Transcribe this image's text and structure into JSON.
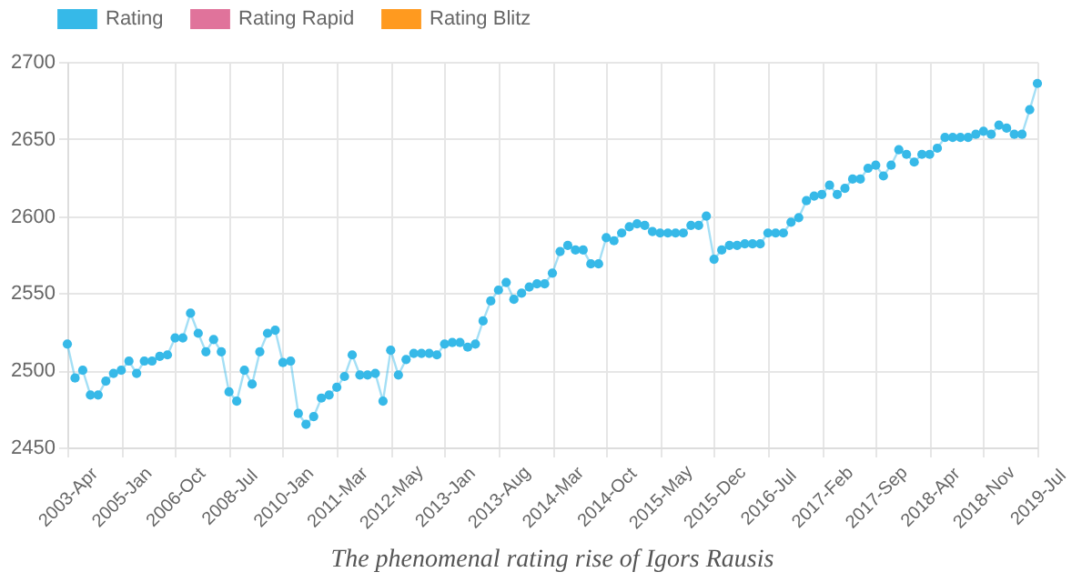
{
  "chart_data": {
    "type": "line",
    "categories": [
      "2003-Apr",
      null,
      null,
      null,
      null,
      null,
      null,
      "2005-Jan",
      null,
      null,
      null,
      null,
      null,
      null,
      "2006-Oct",
      null,
      null,
      null,
      null,
      null,
      null,
      "2008-Jul",
      null,
      null,
      null,
      null,
      null,
      null,
      "2010-Jan",
      null,
      null,
      null,
      null,
      null,
      null,
      "2011-Mar",
      null,
      null,
      null,
      null,
      null,
      null,
      "2012-May",
      null,
      null,
      null,
      null,
      null,
      null,
      "2013-Jan",
      null,
      null,
      null,
      null,
      null,
      null,
      "2013-Aug",
      null,
      null,
      null,
      null,
      null,
      null,
      "2014-Mar",
      null,
      null,
      null,
      null,
      null,
      null,
      "2014-Oct",
      null,
      null,
      null,
      null,
      null,
      null,
      "2015-May",
      null,
      null,
      null,
      null,
      null,
      null,
      "2015-Dec",
      null,
      null,
      null,
      null,
      null,
      null,
      "2016-Jul",
      null,
      null,
      null,
      null,
      null,
      null,
      "2017-Feb",
      null,
      null,
      null,
      null,
      null,
      null,
      "2017-Sep",
      null,
      null,
      null,
      null,
      null,
      null,
      "2018-Apr",
      null,
      null,
      null,
      null,
      null,
      null,
      "2018-Nov",
      null,
      null,
      null,
      null,
      null,
      null,
      "2019-Jul"
    ],
    "series": [
      {
        "name": "Rating",
        "color": "#36b9e8",
        "values": [
          2517,
          2495,
          2500,
          2484,
          2484,
          2493,
          2498,
          2500,
          2506,
          2498,
          2506,
          2506,
          2509,
          2510,
          2521,
          2521,
          2537,
          2524,
          2512,
          2520,
          2512,
          2486,
          2480,
          2500,
          2491,
          2512,
          2524,
          2526,
          2505,
          2506,
          2472,
          2465,
          2470,
          2482,
          2484,
          2489,
          2496,
          2510,
          2497,
          2497,
          2498,
          2480,
          2513,
          2497,
          2507,
          2511,
          2511,
          2511,
          2510,
          2517,
          2518,
          2518,
          2515,
          2517,
          2532,
          2545,
          2552,
          2557,
          2546,
          2550,
          2554,
          2556,
          2556,
          2563,
          2577,
          2581,
          2578,
          2578,
          2569,
          2569,
          2586,
          2584,
          2589,
          2593,
          2595,
          2594,
          2590,
          2589,
          2589,
          2589,
          2589,
          2594,
          2594,
          2600,
          2572,
          2578,
          2581,
          2581,
          2582,
          2582,
          2582,
          2589,
          2589,
          2589,
          2596,
          2599,
          2610,
          2613,
          2614,
          2620,
          2614,
          2618,
          2624,
          2624,
          2631,
          2633,
          2626,
          2633,
          2643,
          2640,
          2635,
          2640,
          2640,
          2644,
          2651,
          2651,
          2651,
          2651,
          2653,
          2655,
          2653,
          2659,
          2657,
          2653,
          2653,
          2669,
          2686
        ]
      },
      {
        "name": "Rating Rapid",
        "color": "#e0739b",
        "values": [
          null,
          null,
          null,
          null,
          null,
          null,
          null,
          null,
          null,
          null,
          null,
          null,
          null,
          null,
          null,
          null,
          null,
          null,
          null,
          null,
          null,
          null,
          null,
          null,
          null,
          null,
          null,
          null,
          null,
          null,
          null,
          null,
          null,
          null,
          null,
          null,
          null,
          null,
          null,
          null,
          null,
          null,
          null,
          null,
          null,
          null,
          null,
          null,
          null,
          null,
          null,
          null,
          null,
          null,
          null,
          null,
          null,
          null,
          null,
          null,
          null,
          null,
          null,
          null,
          null,
          null,
          null,
          null,
          null,
          null,
          null,
          null,
          null,
          null,
          null,
          null,
          null,
          null,
          null,
          null,
          null,
          null,
          null,
          null,
          null,
          null,
          null,
          null,
          null,
          null,
          null,
          null,
          null,
          null,
          null,
          null,
          null,
          null,
          null,
          null,
          null,
          null,
          null,
          null,
          null,
          null,
          null,
          null,
          null,
          null,
          null,
          null,
          null,
          null,
          null,
          null,
          null,
          null,
          null,
          null,
          null,
          null,
          null,
          null,
          null,
          null,
          null
        ]
      },
      {
        "name": "Rating Blitz",
        "color": "#ff9a1f",
        "values": [
          null,
          null,
          null,
          null,
          null,
          null,
          null,
          null,
          null,
          null,
          null,
          null,
          null,
          null,
          null,
          null,
          null,
          null,
          null,
          null,
          null,
          null,
          null,
          null,
          null,
          null,
          null,
          null,
          null,
          null,
          null,
          null,
          null,
          null,
          null,
          null,
          null,
          null,
          null,
          null,
          null,
          null,
          null,
          null,
          null,
          null,
          null,
          null,
          null,
          null,
          null,
          null,
          null,
          null,
          null,
          null,
          null,
          null,
          null,
          null,
          null,
          null,
          null,
          null,
          null,
          null,
          null,
          null,
          null,
          null,
          null,
          null,
          null,
          null,
          null,
          null,
          null,
          null,
          null,
          null,
          null,
          null,
          null,
          null,
          null,
          null,
          null,
          null,
          null,
          null,
          null,
          null,
          null,
          null,
          null,
          null,
          null,
          null,
          null,
          null,
          null,
          null,
          null,
          null,
          null,
          null,
          null,
          null,
          null,
          null,
          null,
          null,
          null,
          null,
          null,
          null,
          null,
          null,
          null,
          null,
          null,
          null,
          null,
          null,
          null,
          null,
          null
        ]
      }
    ],
    "ylim": [
      2450,
      2700
    ],
    "yticks": [
      2450,
      2500,
      2550,
      2600,
      2650,
      2700
    ],
    "grid": true,
    "legend": "top",
    "marker": "circle",
    "line_style": "solid",
    "annotations": [
      "The phenomenal rating rise of Igors Rausis"
    ]
  }
}
